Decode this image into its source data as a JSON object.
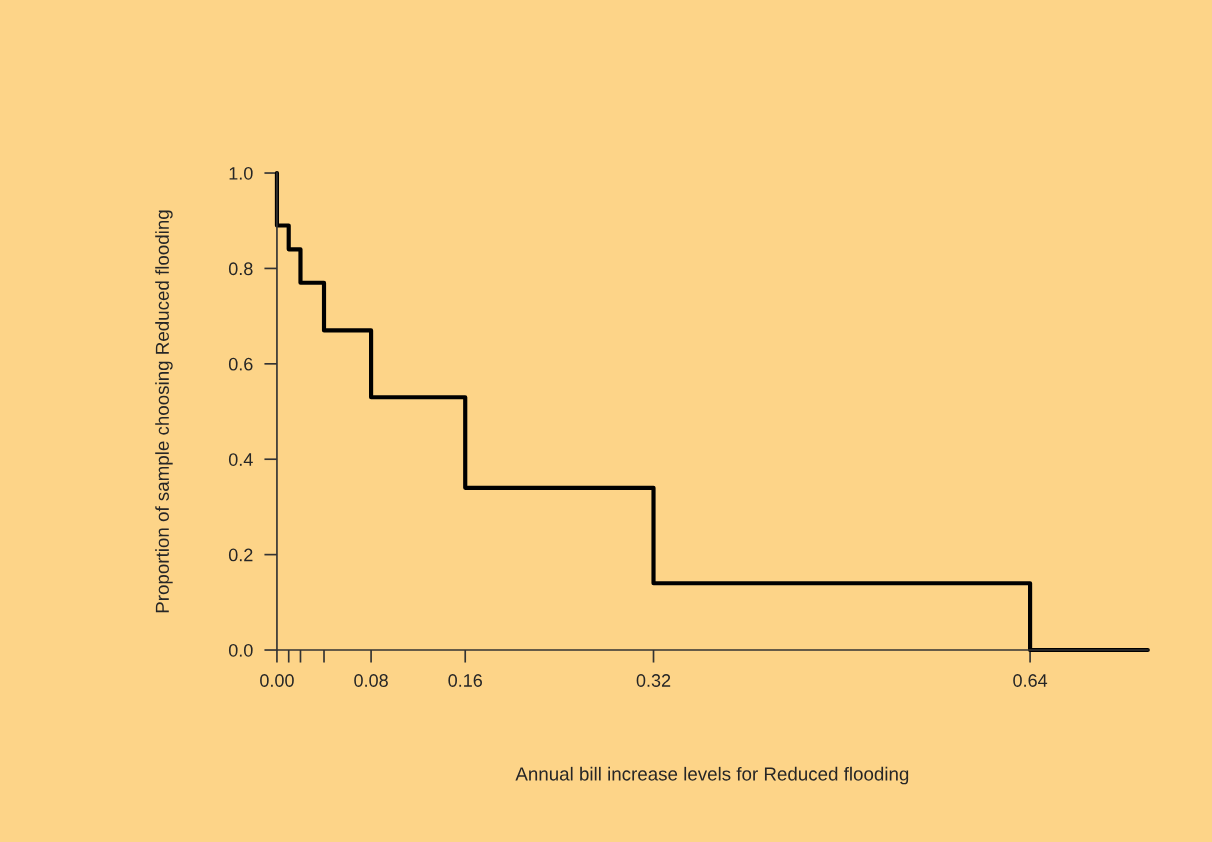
{
  "chart_data": {
    "type": "step",
    "xlabel": "Annual bill increase levels for Reduced flooding",
    "ylabel": "Proportion of sample choosing Reduced flooding",
    "x": [
      0,
      0,
      0.01,
      0.02,
      0.04,
      0.08,
      0.16,
      0.32,
      0.64,
      0.74
    ],
    "series": [
      {
        "color": "#000000",
        "values": [
          1.0,
          0.89,
          0.84,
          0.77,
          0.67,
          0.53,
          0.34,
          0.14,
          0.0,
          0.0
        ]
      }
    ],
    "xlim": [
      0,
      0.74
    ],
    "ylim": [
      0,
      1.0
    ],
    "xticks": [
      {
        "value": 0,
        "label": "0.00"
      },
      {
        "value": 0.01,
        "label": null
      },
      {
        "value": 0.02,
        "label": null
      },
      {
        "value": 0.04,
        "label": null
      },
      0.08,
      0.16,
      0.32,
      0.64
    ],
    "yticks": [
      {
        "value": 0,
        "label": "0.0"
      },
      0.2,
      0.4,
      0.6,
      0.8,
      {
        "value": 1.0,
        "label": "1.0"
      }
    ],
    "line_style": "solid",
    "grid": false,
    "legend": false
  }
}
